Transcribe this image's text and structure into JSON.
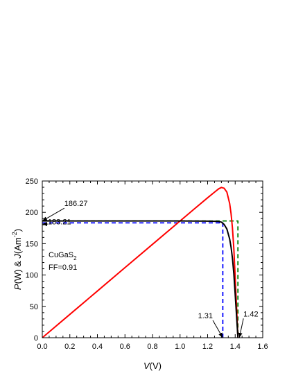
{
  "chart_data": {
    "type": "line",
    "title": "",
    "xlabel": {
      "italic": "V",
      "rest": "(V)"
    },
    "ylabel": {
      "p_italic": "P",
      "mid": "(W) & ",
      "j_italic": "J",
      "unit": "(Am",
      "exp": "-2",
      "close": ")"
    },
    "xlim": [
      0.0,
      1.6
    ],
    "ylim": [
      0,
      250
    ],
    "xticks": [
      "0.0",
      "0.2",
      "0.4",
      "0.6",
      "0.8",
      "1.0",
      "1.2",
      "1.4",
      "1.6"
    ],
    "xtick_values": [
      0.0,
      0.2,
      0.4,
      0.6,
      0.8,
      1.0,
      1.2,
      1.4,
      1.6
    ],
    "yticks": [
      "0",
      "50",
      "100",
      "150",
      "200",
      "250"
    ],
    "ytick_values": [
      0,
      50,
      100,
      150,
      200,
      250
    ],
    "grid": false,
    "series": [
      {
        "color": "#ff0000",
        "style": "solid",
        "kind": "power",
        "x": [
          0,
          0.2,
          0.4,
          0.6,
          0.8,
          1.0,
          1.1,
          1.2,
          1.25,
          1.28,
          1.3,
          1.32,
          1.34,
          1.36,
          1.37,
          1.38,
          1.39,
          1.4,
          1.41,
          1.42
        ],
        "y": [
          0,
          37.3,
          74.5,
          111.8,
          149.0,
          186.3,
          204.8,
          223.2,
          232.2,
          237.5,
          239.7,
          238.5,
          232.2,
          214.0,
          198.0,
          175.0,
          142.0,
          98.0,
          50.0,
          0
        ]
      },
      {
        "color": "#000000",
        "style": "solid",
        "kind": "current",
        "x": [
          0,
          0.4,
          0.8,
          1.0,
          1.1,
          1.2,
          1.25,
          1.28,
          1.3,
          1.32,
          1.34,
          1.36,
          1.37,
          1.38,
          1.39,
          1.4,
          1.41,
          1.42
        ],
        "y": [
          186.27,
          186.27,
          186.27,
          186.27,
          186.2,
          186.0,
          185.7,
          185.5,
          184.4,
          180.7,
          173.3,
          157.4,
          144.5,
          126.8,
          102.2,
          70.0,
          35.5,
          0
        ]
      },
      {
        "color": "#008000",
        "style": "dashed",
        "kind": "ideal-rectangle",
        "x": [
          0,
          1.42,
          1.42
        ],
        "y": [
          186.27,
          186.27,
          0
        ]
      },
      {
        "color": "#0000ff",
        "style": "dashed",
        "kind": "mpp-rectangle",
        "x": [
          0,
          1.31,
          1.31
        ],
        "y": [
          183.21,
          183.21,
          0
        ]
      }
    ],
    "annotations": [
      {
        "text": "186.27",
        "x": 0.16,
        "y": 210,
        "arrow_to": [
          0.0,
          186.27
        ]
      },
      {
        "text": "183.21",
        "x": 0.04,
        "y": 181,
        "arrow_to": [
          0.0,
          181.3
        ]
      },
      {
        "text": "1.31",
        "x": 1.13,
        "y": 31,
        "arrow_to": [
          1.31,
          0
        ]
      },
      {
        "text": "1.42",
        "x": 1.46,
        "y": 34,
        "arrow_to": [
          1.43,
          0
        ]
      }
    ],
    "material": {
      "base": "CuGaS",
      "subscript": "2"
    },
    "ff_label": "FF=0.91"
  }
}
